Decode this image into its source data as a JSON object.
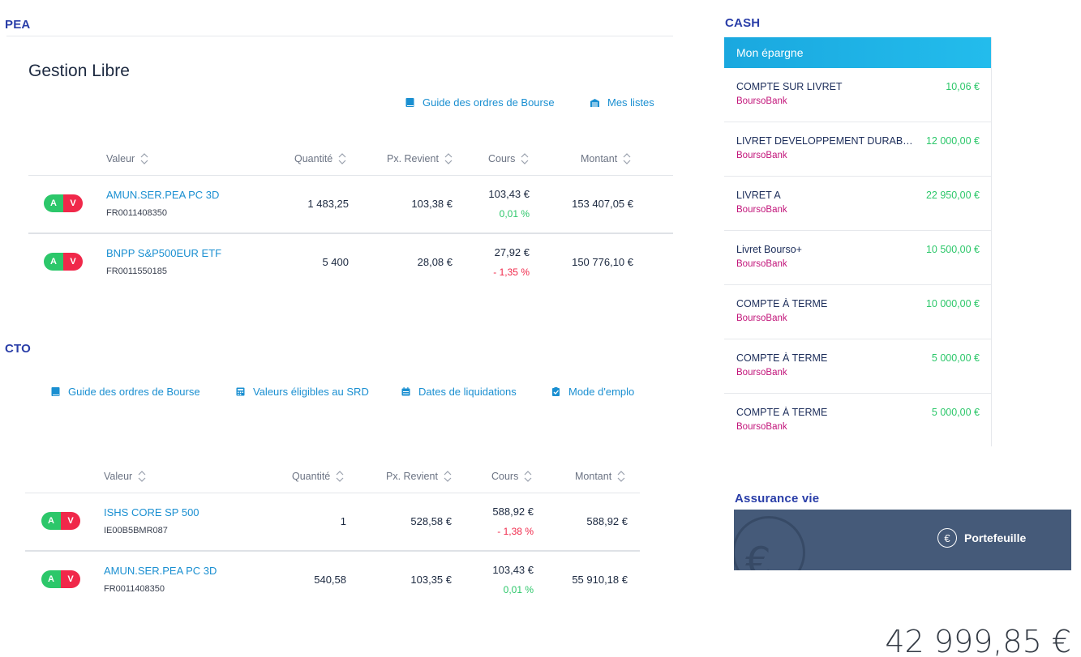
{
  "pea": {
    "title": "PEA",
    "subtitle": "Gestion Libre",
    "links": [
      {
        "label": "Guide des ordres de Bourse",
        "icon": "book-icon"
      },
      {
        "label": "Mes listes",
        "icon": "list-icon"
      }
    ],
    "columns": [
      "Valeur",
      "Quantité",
      "Px. Revient",
      "Cours",
      "Montant"
    ],
    "rows": [
      {
        "a": "A",
        "v": "V",
        "name": "AMUN.SER.PEA PC 3D",
        "isin": "FR0011408350",
        "qty": "1 483,25",
        "px": "103,38 €",
        "cours": "103,43 €",
        "var": "0,01 %",
        "var_sign": "pos",
        "montant": "153 407,05 €"
      },
      {
        "a": "A",
        "v": "V",
        "name": "BNPP S&P500EUR ETF",
        "isin": "FR0011550185",
        "qty": "5 400",
        "px": "28,08 €",
        "cours": "27,92 €",
        "var": "- 1,35 %",
        "var_sign": "neg",
        "montant": "150 776,10 €"
      }
    ]
  },
  "cto": {
    "title": "CTO",
    "links": [
      {
        "label": "Guide des ordres de Bourse",
        "icon": "book-icon"
      },
      {
        "label": "Valeurs éligibles au SRD",
        "icon": "calculator-icon"
      },
      {
        "label": "Dates de liquidations",
        "icon": "calendar-icon"
      },
      {
        "label": "Mode d'emplo",
        "icon": "clipboard-icon"
      }
    ],
    "columns": [
      "Valeur",
      "Quantité",
      "Px. Revient",
      "Cours",
      "Montant"
    ],
    "rows": [
      {
        "a": "A",
        "v": "V",
        "name": "ISHS CORE SP 500",
        "isin": "IE00B5BMR087",
        "qty": "1",
        "px": "528,58 €",
        "cours": "588,92 €",
        "var": "- 1,38 %",
        "var_sign": "neg",
        "montant": "588,92 €"
      },
      {
        "a": "A",
        "v": "V",
        "name": "AMUN.SER.PEA PC 3D",
        "isin": "FR0011408350",
        "qty": "540,58",
        "px": "103,35 €",
        "cours": "103,43 €",
        "var": "0,01 %",
        "var_sign": "pos",
        "montant": "55 910,18 €"
      }
    ]
  },
  "cash": {
    "title": "CASH",
    "header": "Mon épargne",
    "items": [
      {
        "name": "COMPTE SUR LIVRET",
        "bank": "BoursoBank",
        "amount": "10,06 €"
      },
      {
        "name": "LIVRET DEVELOPPEMENT DURABLE",
        "bank": "BoursoBank",
        "amount": "12 000,00 €"
      },
      {
        "name": "LIVRET A",
        "bank": "BoursoBank",
        "amount": "22 950,00 €"
      },
      {
        "name": "Livret Bourso+",
        "bank": "BoursoBank",
        "amount": "10 500,00 €"
      },
      {
        "name": "COMPTE À TERME",
        "bank": "BoursoBank",
        "amount": "10 000,00 €"
      },
      {
        "name": "COMPTE À TERME",
        "bank": "BoursoBank",
        "amount": "5 000,00 €"
      },
      {
        "name": "COMPTE À TERME",
        "bank": "BoursoBank",
        "amount": "5 000,00 €"
      }
    ]
  },
  "assurance": {
    "title": "Assurance vie",
    "button": "Portefeuille",
    "icon": "euro-circle-icon",
    "euro_glyph": "€"
  },
  "total": "42 999,85 €",
  "colors": {
    "accent": "#1a8fd1",
    "positive": "#2cc76a",
    "negative": "#f0284a",
    "section": "#2a3ea8",
    "bank": "#c2157a"
  }
}
